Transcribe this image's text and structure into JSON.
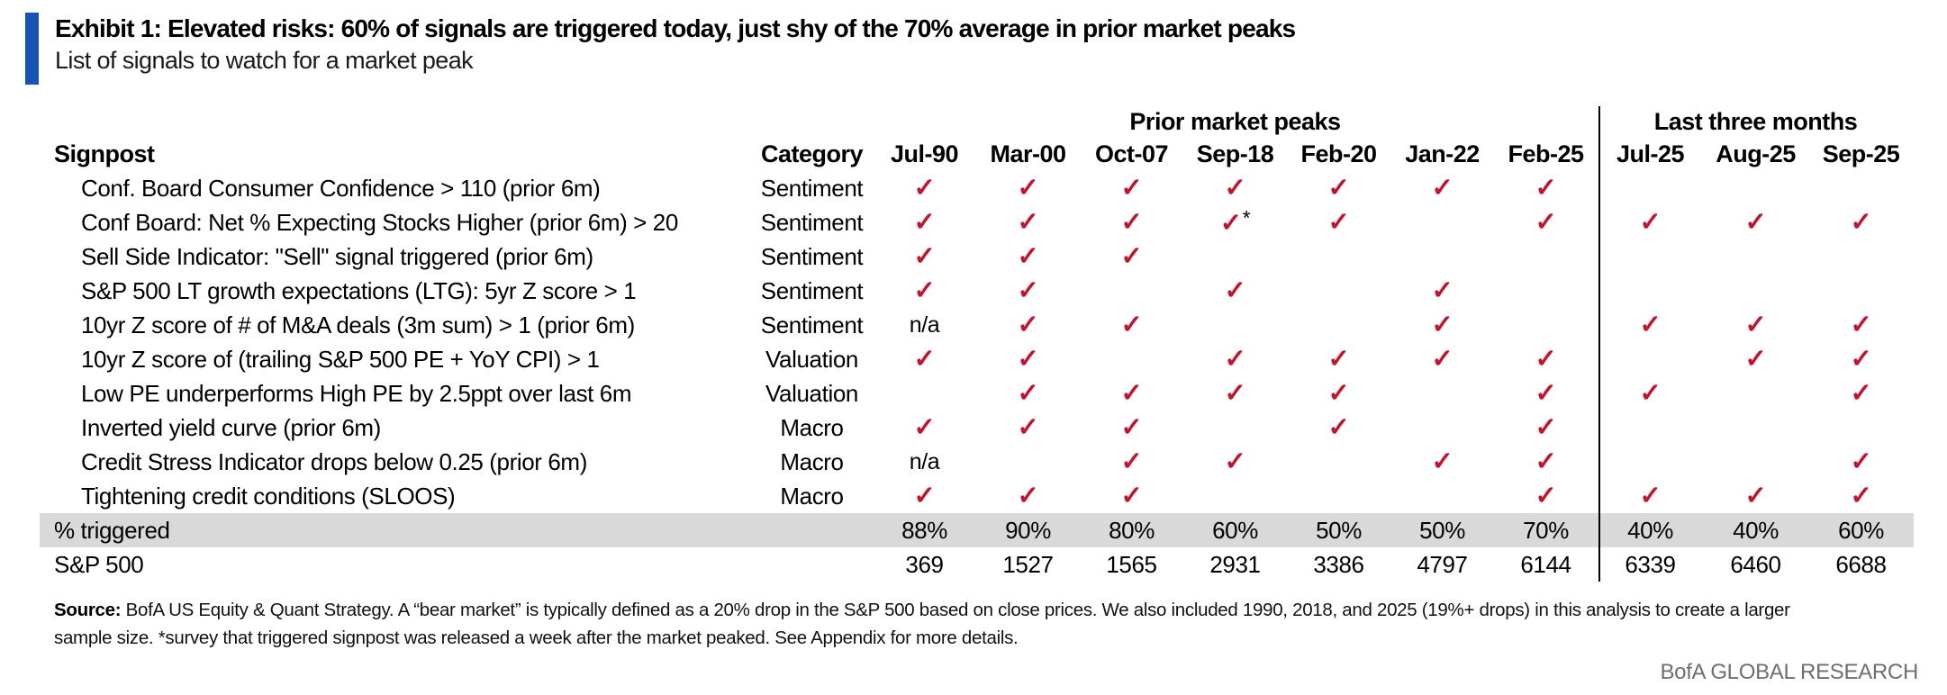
{
  "colors": {
    "accent_blue": "#1553B7",
    "check_red": "#C4122F",
    "row_highlight": "#D9D9D9",
    "brand_gray": "#6E6E6E"
  },
  "header": {
    "title": "Exhibit 1: Elevated risks: 60% of signals are triggered today, just shy of the 70% average in prior market peaks",
    "subtitle": "List of signals to watch for a market peak"
  },
  "table": {
    "signpost_header": "Signpost",
    "category_header": "Category",
    "group_headers": [
      {
        "label": "Prior market peaks",
        "span": 7
      },
      {
        "label": "Last three months",
        "span": 3
      }
    ],
    "columns": [
      "Jul-90",
      "Mar-00",
      "Oct-07",
      "Sep-18",
      "Feb-20",
      "Jan-22",
      "Feb-25",
      "Jul-25",
      "Aug-25",
      "Sep-25"
    ],
    "check_glyph": "✓",
    "rows": [
      {
        "signpost": "Conf. Board Consumer Confidence > 110 (prior 6m)",
        "category": "Sentiment",
        "cells": [
          "✓",
          "✓",
          "✓",
          "✓",
          "✓",
          "✓",
          "✓",
          "",
          "",
          ""
        ]
      },
      {
        "signpost": "Conf Board: Net % Expecting Stocks Higher (prior 6m) > 20",
        "category": "Sentiment",
        "cells": [
          "✓",
          "✓",
          "✓",
          "✓*",
          "✓",
          "",
          "✓",
          "✓",
          "✓",
          "✓"
        ]
      },
      {
        "signpost": "Sell Side Indicator: \"Sell\" signal triggered (prior 6m)",
        "category": "Sentiment",
        "cells": [
          "✓",
          "✓",
          "✓",
          "",
          "",
          "",
          "",
          "",
          "",
          ""
        ]
      },
      {
        "signpost": "S&P 500 LT growth expectations (LTG): 5yr Z score > 1",
        "category": "Sentiment",
        "cells": [
          "✓",
          "✓",
          "",
          "✓",
          "",
          "✓",
          "",
          "",
          "",
          ""
        ]
      },
      {
        "signpost": "10yr Z score of # of M&A deals (3m sum) > 1 (prior 6m)",
        "category": "Sentiment",
        "cells": [
          "n/a",
          "✓",
          "✓",
          "",
          "",
          "✓",
          "",
          "✓",
          "✓",
          "✓"
        ]
      },
      {
        "signpost": "10yr Z score of (trailing S&P 500 PE + YoY CPI) > 1",
        "category": "Valuation",
        "cells": [
          "✓",
          "✓",
          "",
          "✓",
          "✓",
          "✓",
          "✓",
          "",
          "✓",
          "✓"
        ]
      },
      {
        "signpost": "Low PE underperforms High PE by 2.5ppt over last 6m",
        "category": "Valuation",
        "cells": [
          "",
          "✓",
          "✓",
          "✓",
          "✓",
          "",
          "✓",
          "✓",
          "",
          "✓"
        ]
      },
      {
        "signpost": "Inverted yield curve (prior 6m)",
        "category": "Macro",
        "cells": [
          "✓",
          "✓",
          "✓",
          "",
          "✓",
          "",
          "✓",
          "",
          "",
          ""
        ]
      },
      {
        "signpost": "Credit Stress Indicator drops below 0.25 (prior 6m)",
        "category": "Macro",
        "cells": [
          "n/a",
          "",
          "✓",
          "✓",
          "",
          "✓",
          "✓",
          "",
          "",
          "✓"
        ]
      },
      {
        "signpost": "Tightening credit conditions (SLOOS)",
        "category": "Macro",
        "cells": [
          "✓",
          "✓",
          "✓",
          "",
          "",
          "",
          "✓",
          "✓",
          "✓",
          "✓"
        ]
      }
    ],
    "summary_rows": [
      {
        "label": "% triggered",
        "highlighted": true,
        "values": [
          "88%",
          "90%",
          "80%",
          "60%",
          "50%",
          "50%",
          "70%",
          "40%",
          "40%",
          "60%"
        ]
      },
      {
        "label": "S&P 500",
        "highlighted": false,
        "values": [
          "369",
          "1527",
          "1565",
          "2931",
          "3386",
          "4797",
          "6144",
          "6339",
          "6460",
          "6688"
        ]
      }
    ]
  },
  "footer": {
    "source_bold": "Source:",
    "source_text": " BofA US Equity & Quant Strategy. A “bear market” is typically defined as a 20% drop in the S&P 500 based on close prices. We also included 1990, 2018, and 2025 (19%+ drops) in this analysis to create a larger sample size. *survey that triggered signpost was released a week after the market peaked. See Appendix for more details.",
    "brand": "BofA GLOBAL RESEARCH"
  }
}
